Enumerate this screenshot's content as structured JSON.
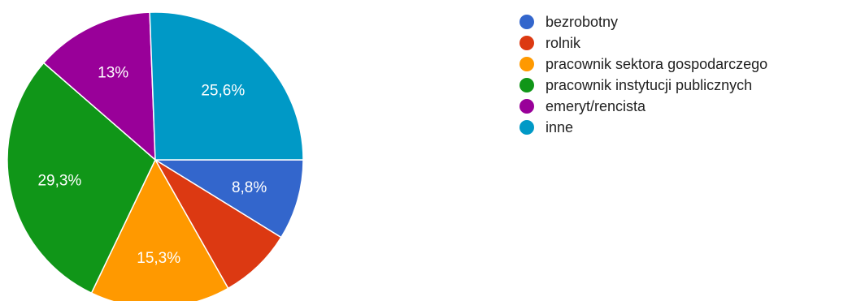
{
  "chart_data": {
    "type": "pie",
    "title": "",
    "start_angle_deg": 0,
    "direction": "clockwise",
    "legend_position": "right",
    "slices": [
      {
        "label": "bezrobotny",
        "value": 8.8,
        "display": "8,8%",
        "color": "#3366cc"
      },
      {
        "label": "rolnik",
        "value": 8.0,
        "display": "",
        "color": "#dc3912"
      },
      {
        "label": "pracownik sektora gospodarczego",
        "value": 15.3,
        "display": "15,3%",
        "color": "#ff9900"
      },
      {
        "label": "pracownik instytucji publicznych",
        "value": 29.3,
        "display": "29,3%",
        "color": "#109618"
      },
      {
        "label": "emeryt/rencista",
        "value": 13.0,
        "display": "13%",
        "color": "#990099"
      },
      {
        "label": "inne",
        "value": 25.6,
        "display": "25,6%",
        "color": "#0099c6"
      }
    ]
  }
}
